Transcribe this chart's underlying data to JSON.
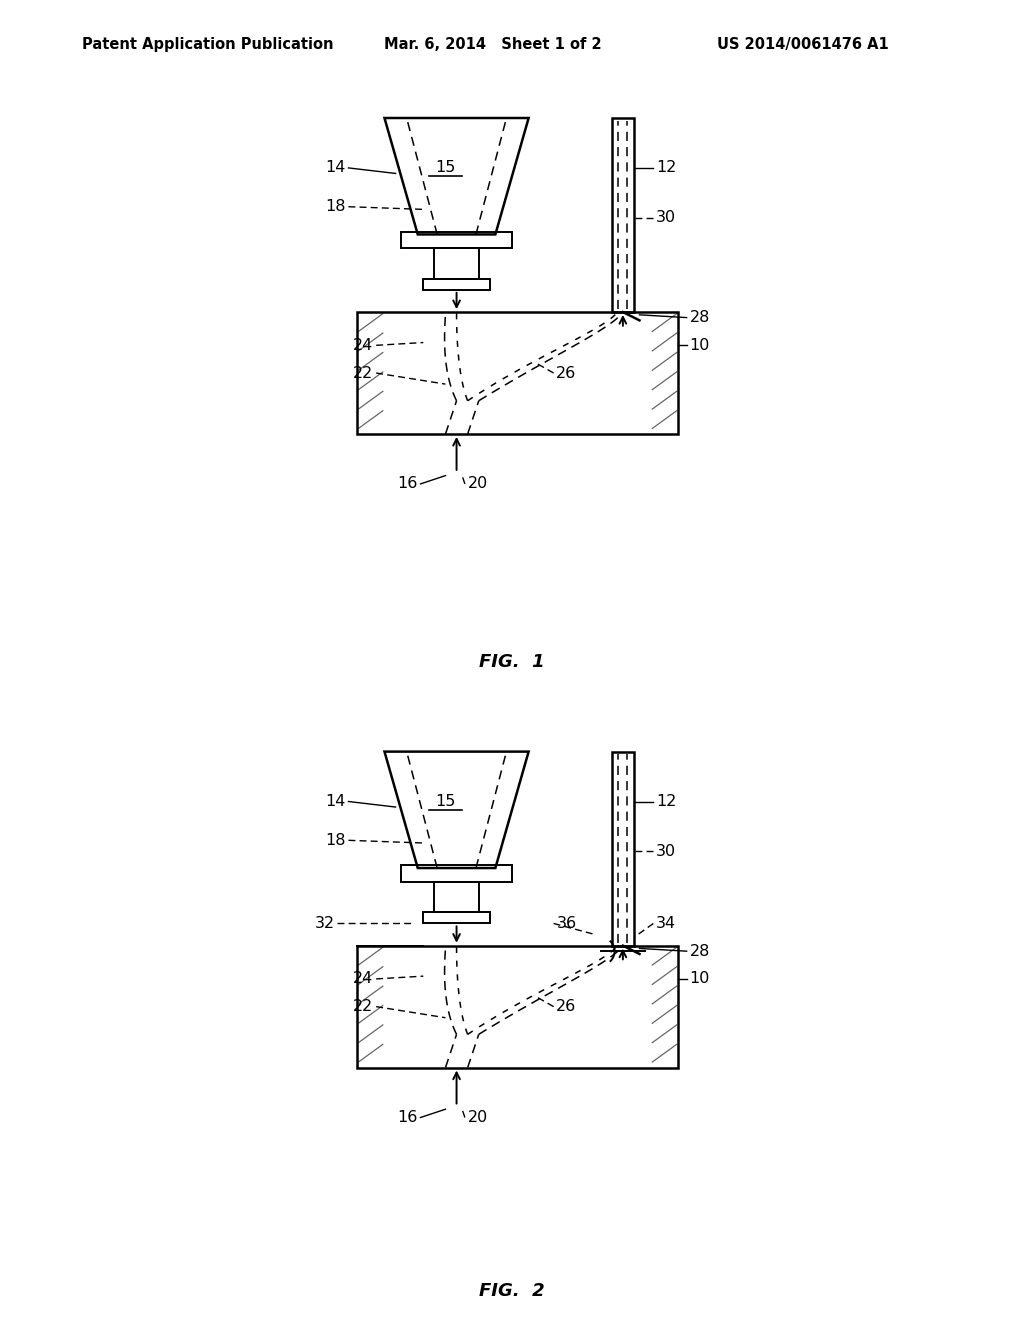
{
  "bg_color": "#ffffff",
  "line_color": "#000000",
  "header_left": "Patent Application Publication",
  "header_center": "Mar. 6, 2014   Sheet 1 of 2",
  "header_right": "US 2014/0061476 A1",
  "fig1_caption": "FIG.  1",
  "fig2_caption": "FIG.  2"
}
